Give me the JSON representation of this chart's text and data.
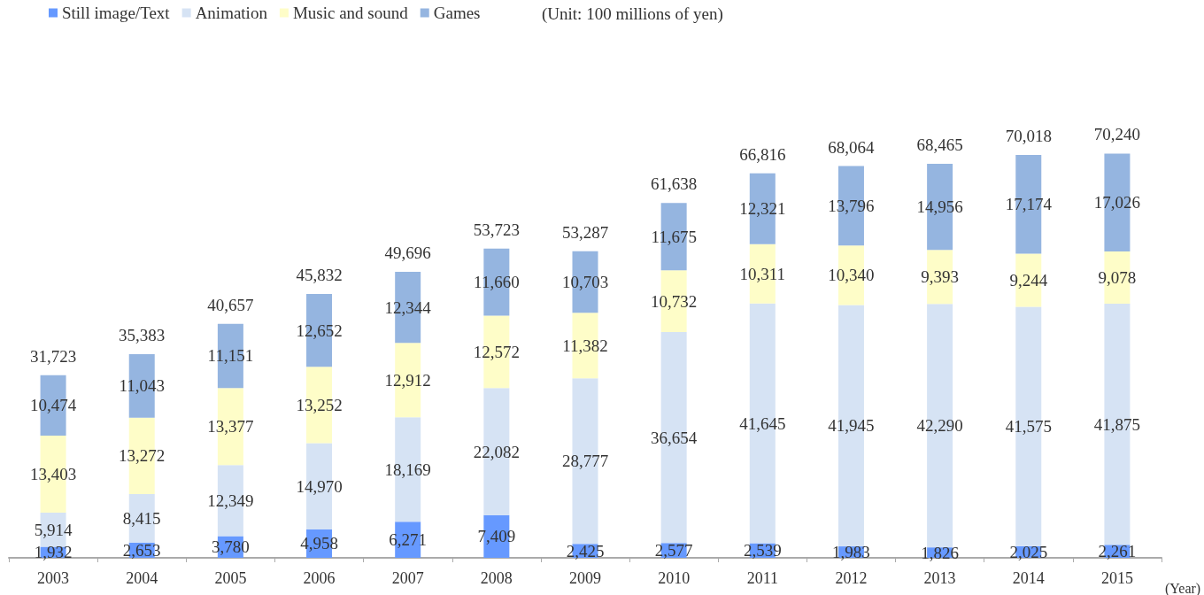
{
  "chart_data": {
    "type": "bar",
    "stacked": true,
    "legend": "top left",
    "tick_labels": "x",
    "grid": false,
    "xlabel": "(Year)",
    "annotations": [
      "(Unit: 100 millions of yen)"
    ],
    "categories": [
      "2003",
      "2004",
      "2005",
      "2006",
      "2007",
      "2008",
      "2009",
      "2010",
      "2011",
      "2012",
      "2013",
      "2014",
      "2015"
    ],
    "series": [
      {
        "name": "Still image/Text",
        "color": "#6699ff",
        "values": [
          1932,
          2653,
          3780,
          4958,
          6271,
          7409,
          2425,
          2577,
          2539,
          1983,
          1826,
          2025,
          2261
        ],
        "value_labels": [
          "1,932",
          "2,653",
          "3,780",
          "4,958",
          "6,271",
          "7,409",
          "2,425",
          "2,577",
          "2,539",
          "1,983",
          "1,826",
          "2,025",
          "2,261"
        ]
      },
      {
        "name": "Animation",
        "color": "#d6e3f4",
        "values": [
          5914,
          8415,
          12349,
          14970,
          18169,
          22082,
          28777,
          36654,
          41645,
          41945,
          42290,
          41575,
          41875
        ],
        "value_labels": [
          "5,914",
          "8,415",
          "12,349",
          "14,970",
          "18,169",
          "22,082",
          "28,777",
          "36,654",
          "41,645",
          "41,945",
          "42,290",
          "41,575",
          "41,875"
        ]
      },
      {
        "name": "Music and sound",
        "color": "#fefdc8",
        "values": [
          13403,
          13272,
          13377,
          13252,
          12912,
          12572,
          11382,
          10732,
          10311,
          10340,
          9393,
          9244,
          9078
        ],
        "value_labels": [
          "13,403",
          "13,272",
          "13,377",
          "13,252",
          "12,912",
          "12,572",
          "11,382",
          "10,732",
          "10,311",
          "10,340",
          "9,393",
          "9,244",
          "9,078"
        ]
      },
      {
        "name": "Games",
        "color": "#95b5e0",
        "values": [
          10474,
          11043,
          11151,
          12652,
          12344,
          11660,
          10703,
          11675,
          12321,
          13796,
          14956,
          17174,
          17026
        ],
        "value_labels": [
          "10,474",
          "11,043",
          "11,151",
          "12,652",
          "12,344",
          "11,660",
          "10,703",
          "11,675",
          "12,321",
          "13,796",
          "14,956",
          "17,174",
          "17,026"
        ]
      }
    ],
    "totals": [
      "31,723",
      "35,383",
      "40,657",
      "45,832",
      "49,696",
      "53,723",
      "53,287",
      "61,638",
      "66,816",
      "68,064",
      "68,465",
      "70,018",
      "70,240"
    ]
  }
}
